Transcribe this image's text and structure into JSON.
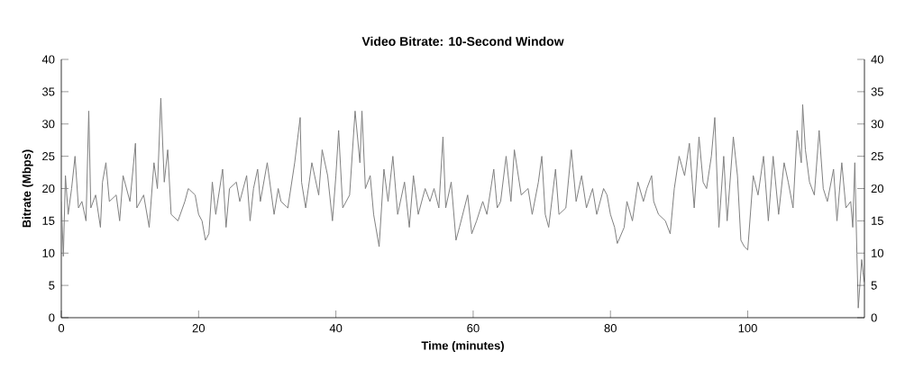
{
  "chart_data": {
    "type": "line",
    "title": "Video Bitrate: 10-Second Window",
    "xlabel": "Time (minutes)",
    "ylabel": "Bitrate (Mbps)",
    "xlim": [
      0,
      117
    ],
    "xticks": [
      0,
      20,
      40,
      60,
      80,
      100
    ],
    "ylim": [
      0,
      40
    ],
    "yticks": [
      0,
      5,
      10,
      15,
      20,
      25,
      30,
      35,
      40
    ],
    "y2lim": [
      0,
      40
    ],
    "y2ticks": [
      0,
      5,
      10,
      15,
      20,
      25,
      30,
      35,
      40
    ],
    "grid": false,
    "legend": false,
    "marker": "none",
    "line_style": "solid",
    "series": [
      {
        "color": "#808080",
        "x": [
          0,
          0.3,
          0.6,
          1,
          1.5,
          2,
          2.5,
          3,
          3.6,
          4,
          4.3,
          5,
          5.7,
          6,
          6.5,
          7,
          8,
          8.5,
          9,
          10,
          10.8,
          11,
          12,
          12.8,
          13.5,
          14,
          14.5,
          15,
          15.5,
          16,
          17,
          18,
          18.5,
          19.5,
          20,
          20.5,
          21,
          21.5,
          22,
          22.5,
          23.5,
          24,
          24.5,
          25.5,
          26,
          27,
          27.5,
          28,
          28.6,
          29,
          30,
          31,
          31.6,
          32,
          33,
          34,
          34.8,
          35,
          35.6,
          36.5,
          37.5,
          38,
          38.8,
          39.5,
          40,
          40.4,
          41,
          42,
          42.8,
          43.5,
          43.8,
          44.3,
          45,
          45.5,
          46.3,
          47,
          47.6,
          48.3,
          49,
          50,
          50.7,
          51.3,
          52,
          53,
          53.7,
          54.3,
          55,
          55.6,
          56,
          56.8,
          57.5,
          58,
          59.2,
          59.8,
          60.5,
          61.4,
          62,
          63,
          63.5,
          64,
          64.8,
          65.5,
          66,
          67,
          68,
          68.6,
          69.5,
          70,
          70.5,
          71,
          72,
          72.5,
          73.5,
          74.3,
          75,
          75.8,
          76.5,
          77.4,
          78,
          79,
          79.5,
          80,
          80.6,
          81,
          82,
          82.4,
          83.2,
          84,
          84.8,
          85.3,
          86,
          86.3,
          87,
          88,
          88.7,
          89.3,
          90,
          90.8,
          91.5,
          92.2,
          92.9,
          93.5,
          94,
          94.7,
          95.2,
          95.8,
          96.5,
          97,
          97.9,
          98.5,
          99,
          99.5,
          100,
          100.8,
          101.5,
          102.3,
          103,
          103.7,
          104.5,
          105.3,
          105.9,
          106.6,
          107.2,
          107.8,
          108,
          108.4,
          109,
          109.7,
          110.4,
          111,
          111.6,
          112.5,
          113,
          113.7,
          114.3,
          115,
          115.3,
          115.6,
          115.9,
          116.1,
          116.4,
          116.6,
          116.8,
          117
        ],
        "values": [
          18,
          9.5,
          22,
          16,
          20,
          25,
          17,
          18,
          15,
          32,
          17,
          19,
          14,
          21,
          24,
          18,
          19,
          15,
          22,
          18,
          27,
          17,
          19,
          14,
          24,
          20,
          34,
          21,
          26,
          16,
          15,
          18,
          20,
          19,
          16,
          15,
          12,
          13,
          21,
          16,
          23,
          14,
          20,
          21,
          18,
          22,
          15,
          20,
          23,
          18,
          24,
          16,
          20,
          18,
          17,
          24,
          31,
          21,
          17,
          24,
          19,
          26,
          22,
          15,
          22,
          29,
          17,
          19,
          32,
          24,
          32,
          20,
          22,
          16,
          11,
          23,
          18,
          25,
          16,
          21,
          14,
          22,
          16,
          20,
          18,
          20,
          17,
          28,
          17,
          21,
          12,
          14,
          19,
          13,
          15,
          18,
          16,
          23,
          17,
          18,
          25,
          18,
          26,
          19,
          20,
          16,
          21,
          25,
          16,
          14,
          23,
          16,
          17,
          26,
          18,
          22,
          17,
          20,
          16,
          20,
          19,
          16,
          14,
          11.5,
          14,
          18,
          15,
          21,
          18,
          20,
          22,
          18,
          16,
          15,
          13,
          20,
          25,
          22,
          27,
          17,
          28,
          21,
          20,
          25,
          31,
          14,
          25,
          15,
          28,
          22,
          12,
          11,
          10.5,
          22,
          19,
          25,
          15,
          25,
          16,
          24,
          21,
          17,
          29,
          24,
          33,
          26,
          21,
          19,
          29,
          20,
          18,
          23,
          15,
          24,
          17,
          18,
          14,
          24,
          10,
          1.5,
          6,
          9,
          7,
          5.5
        ]
      }
    ]
  }
}
